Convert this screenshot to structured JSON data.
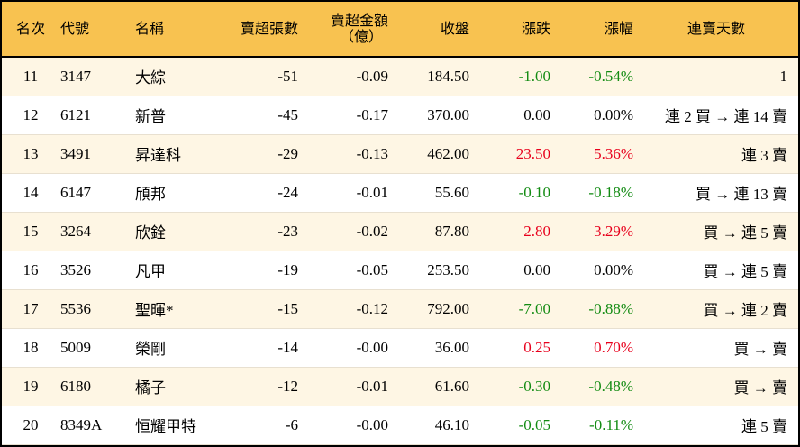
{
  "colors": {
    "header": "#F8C250",
    "row_alt": "#FEF6E4",
    "up": "#E8001C",
    "down": "#128B12"
  },
  "headers": [
    "名次",
    "代號",
    "名稱",
    "賣超張數",
    "賣超金額",
    "（億）",
    "收盤",
    "漲跌",
    "漲幅",
    "連賣天數"
  ],
  "rows": [
    [
      "11",
      "3147",
      "大綜",
      "-51",
      "-0.09",
      "184.50",
      "-1.00",
      "-0.54%",
      "1",
      "dn"
    ],
    [
      "12",
      "6121",
      "新普",
      "-45",
      "-0.17",
      "370.00",
      "0.00",
      "0.00%",
      "連 2 買 → 連 14 賣",
      ""
    ],
    [
      "13",
      "3491",
      "昇達科",
      "-29",
      "-0.13",
      "462.00",
      "23.50",
      "5.36%",
      "連 3 賣",
      "up"
    ],
    [
      "14",
      "6147",
      "頎邦",
      "-24",
      "-0.01",
      "55.60",
      "-0.10",
      "-0.18%",
      "買 → 連 13 賣",
      "dn"
    ],
    [
      "15",
      "3264",
      "欣銓",
      "-23",
      "-0.02",
      "87.80",
      "2.80",
      "3.29%",
      "買 → 連 5 賣",
      "up"
    ],
    [
      "16",
      "3526",
      "凡甲",
      "-19",
      "-0.05",
      "253.50",
      "0.00",
      "0.00%",
      "買 → 連 5 賣",
      ""
    ],
    [
      "17",
      "5536",
      "聖暉*",
      "-15",
      "-0.12",
      "792.00",
      "-7.00",
      "-0.88%",
      "買 → 連 2 賣",
      "dn"
    ],
    [
      "18",
      "5009",
      "榮剛",
      "-14",
      "-0.00",
      "36.00",
      "0.25",
      "0.70%",
      "買 → 賣",
      "up"
    ],
    [
      "19",
      "6180",
      "橘子",
      "-12",
      "-0.01",
      "61.60",
      "-0.30",
      "-0.48%",
      "買 → 賣",
      "dn"
    ],
    [
      "20",
      "8349A",
      "恒耀甲特",
      "-6",
      "-0.00",
      "46.10",
      "-0.05",
      "-0.11%",
      "連 5 賣",
      "dn"
    ]
  ]
}
